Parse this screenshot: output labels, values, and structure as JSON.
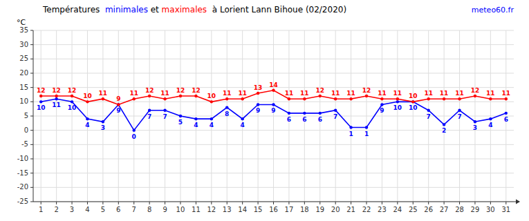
{
  "chart_data": {
    "type": "line",
    "title": "Températures  minimales et maximales  à Lorient Lann Bihoue (02/2020)",
    "y_label": "°C",
    "annotations": [
      {
        "text": "meteo60.fr",
        "color": "blue"
      }
    ],
    "x": [
      1,
      2,
      3,
      4,
      5,
      6,
      7,
      8,
      9,
      10,
      11,
      12,
      13,
      14,
      15,
      16,
      17,
      18,
      19,
      20,
      21,
      22,
      23,
      24,
      25,
      26,
      27,
      28,
      29,
      30,
      31
    ],
    "series": [
      {
        "name": "minimales",
        "color": "#0000ff",
        "marker": "circle",
        "values": [
          10,
          11,
          10,
          4,
          3,
          9,
          0,
          7,
          7,
          5,
          4,
          4,
          8,
          4,
          9,
          9,
          6,
          6,
          6,
          7,
          1,
          1,
          9,
          10,
          10,
          7,
          2,
          7,
          3,
          4,
          6
        ]
      },
      {
        "name": "maximales",
        "color": "#ff0000",
        "marker": "circle",
        "values": [
          12,
          12,
          12,
          10,
          11,
          9,
          11,
          12,
          11,
          12,
          12,
          10,
          11,
          11,
          13,
          14,
          11,
          11,
          12,
          11,
          11,
          12,
          11,
          11,
          10,
          11,
          11,
          11,
          12,
          11,
          11
        ]
      }
    ],
    "xlim": [
      0.5,
      31.5
    ],
    "xticks": [
      1,
      2,
      3,
      4,
      5,
      6,
      7,
      8,
      9,
      10,
      11,
      12,
      13,
      14,
      15,
      16,
      17,
      18,
      19,
      20,
      21,
      22,
      23,
      24,
      25,
      26,
      27,
      28,
      29,
      30,
      31
    ],
    "ylim": [
      -25,
      35
    ],
    "yticks": [
      -25,
      -20,
      -15,
      -10,
      -5,
      0,
      5,
      10,
      15,
      20,
      25,
      30,
      35
    ],
    "grid": true,
    "data_labels": true
  }
}
